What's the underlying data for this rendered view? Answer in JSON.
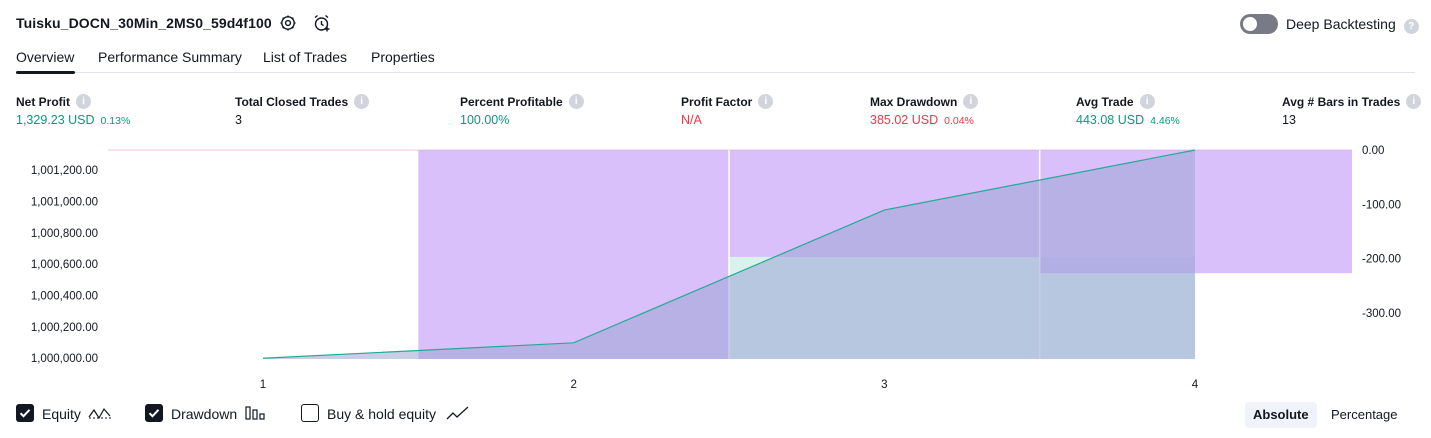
{
  "header": {
    "strategy_name": "Tuisku_DOCN_30Min_2MS0_59d4f100",
    "settings_icon": "gear-icon",
    "alert_icon": "alarm-clock-add-icon",
    "deep_backtesting_label": "Deep Backtesting",
    "deep_backtesting_enabled": false
  },
  "tabs": [
    {
      "label": "Overview",
      "active": true
    },
    {
      "label": "Performance Summary",
      "active": false
    },
    {
      "label": "List of Trades",
      "active": false
    },
    {
      "label": "Properties",
      "active": false
    }
  ],
  "stats": [
    {
      "label": "Net Profit",
      "value": "1,329.23 USD",
      "pct": "0.13%",
      "color": "#089981"
    },
    {
      "label": "Total Closed Trades",
      "value": "3",
      "pct": "",
      "color": "#131722"
    },
    {
      "label": "Percent Profitable",
      "value": "100.00%",
      "pct": "",
      "color": "#089981"
    },
    {
      "label": "Profit Factor",
      "value": "N/A",
      "pct": "",
      "color": "#f23645"
    },
    {
      "label": "Max Drawdown",
      "value": "385.02 USD",
      "pct": "0.04%",
      "color": "#f23645"
    },
    {
      "label": "Avg Trade",
      "value": "443.08 USD",
      "pct": "4.46%",
      "color": "#089981"
    },
    {
      "label": "Avg # Bars in Trades",
      "value": "13",
      "pct": "",
      "color": "#131722"
    }
  ],
  "chart_data": {
    "type": "line",
    "x": [
      1,
      2,
      3,
      4
    ],
    "x_tick_labels": [
      "1",
      "2",
      "3",
      "4"
    ],
    "series": [
      {
        "name": "Equity",
        "values": [
          1000000.0,
          1000098.5,
          1000946.0,
          1001329.23
        ]
      }
    ],
    "drawdown_bars": [
      {
        "x": 2,
        "value": -385.02
      },
      {
        "x": 3,
        "value": -197.0
      },
      {
        "x": 4,
        "value": -227.0
      }
    ],
    "buy_hold_band": {
      "x_start": 2.5,
      "x_end": 4,
      "level": 1000646.0
    },
    "y_left": {
      "ticks": [
        1000000,
        1000200,
        1000400,
        1000600,
        1000800,
        1001000,
        1001200
      ],
      "tick_labels": [
        "1,000,000.00",
        "1,000,200.00",
        "1,000,400.00",
        "1,000,600.00",
        "1,000,800.00",
        "1,001,000.00",
        "1,001,200.00"
      ],
      "ylim": [
        999995,
        1001329.23
      ]
    },
    "y_right": {
      "ticks": [
        0,
        -100,
        -200,
        -300
      ],
      "tick_labels": [
        "0.00",
        "-100.00",
        "-200.00",
        "-300.00"
      ],
      "ylim": [
        -385.02,
        0
      ]
    },
    "colors": {
      "equity_line": "#22ab94",
      "equity_fill": "#9ba4d6",
      "drawdown": "#c9a5fa",
      "buy_hold_fill": "#daf2ec"
    },
    "grid": false
  },
  "footer": {
    "toggles": [
      {
        "label": "Equity",
        "checked": true,
        "icon": "equity-line-icon"
      },
      {
        "label": "Drawdown",
        "checked": true,
        "icon": "drawdown-bars-icon"
      },
      {
        "label": "Buy & hold equity",
        "checked": false,
        "icon": "buy-hold-line-icon"
      }
    ],
    "modes": [
      {
        "label": "Absolute",
        "active": true
      },
      {
        "label": "Percentage",
        "active": false
      }
    ]
  }
}
